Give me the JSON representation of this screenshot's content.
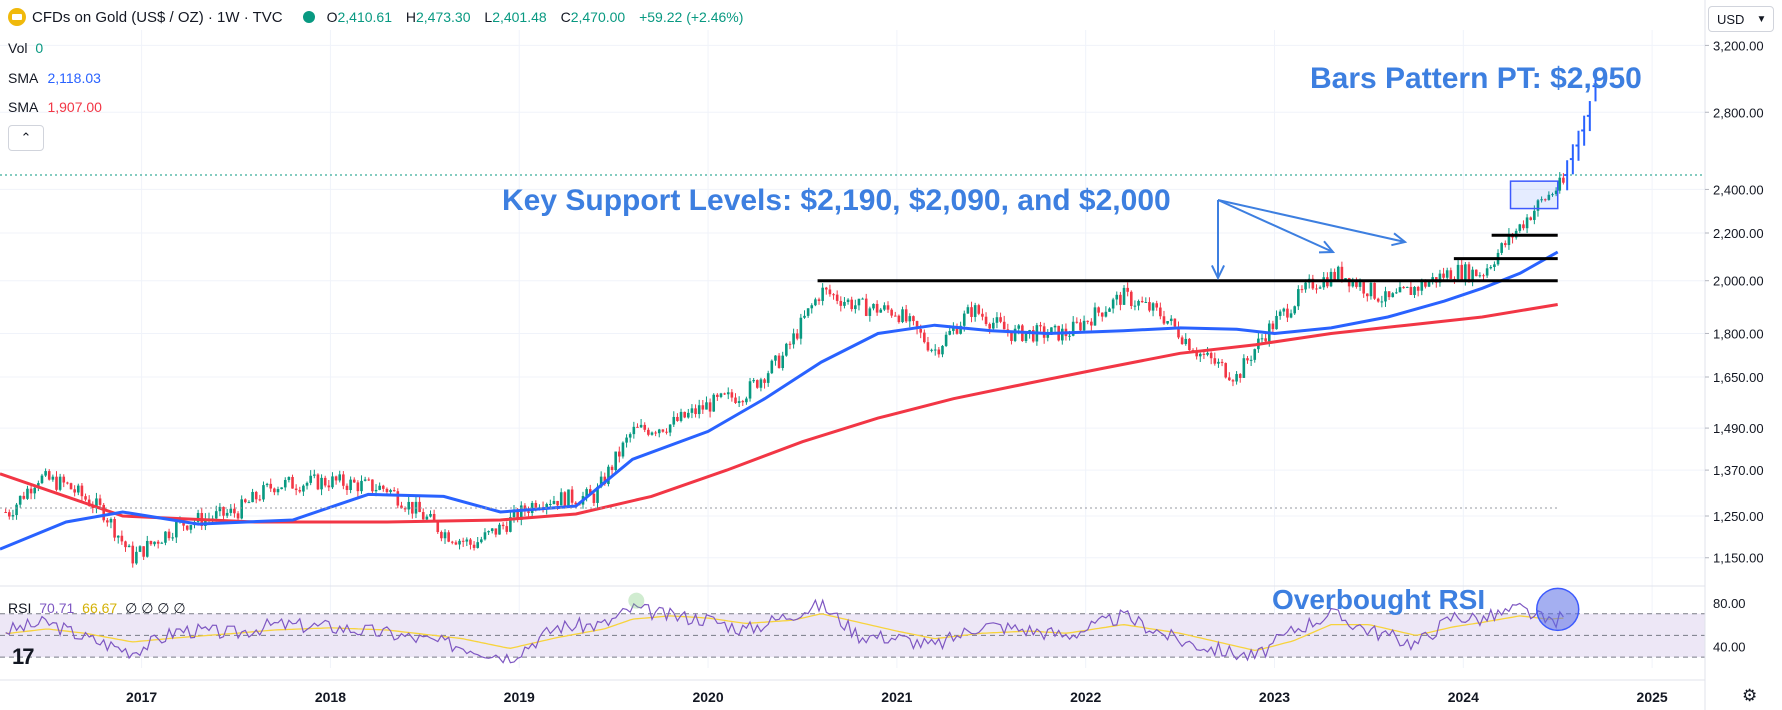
{
  "header": {
    "title": "CFDs on Gold (US$ / OZ) · 1W · TVC",
    "ohlc": {
      "o_label": "O",
      "o": "2,410.61",
      "h_label": "H",
      "h": "2,473.30",
      "l_label": "L",
      "l": "2,401.48",
      "c_label": "C",
      "c": "2,470.00",
      "change": "+59.22 (+2.46%)"
    }
  },
  "indicators": {
    "vol_label": "Vol",
    "vol_value": "0",
    "sma1_label": "SMA",
    "sma1_value": "2,118.03",
    "sma2_label": "SMA",
    "sma2_value": "1,907.00",
    "rsi_label": "RSI",
    "rsi_value": "70.71",
    "rsi_ma_value": "66.67",
    "rsi_extra": "∅ ∅ ∅ ∅"
  },
  "currency": {
    "label": "USD",
    "icon": "chevron-down-icon"
  },
  "collapse_icon": "chevron-up-icon",
  "annotations": {
    "target": "Bars Pattern PT: $2,950",
    "support": "Key Support Levels: $2,190, $2,090, and $2,000",
    "rsi": "Overbought RSI"
  },
  "colors": {
    "up": "#089981",
    "down": "#f23645",
    "sma_fast": "#2962ff",
    "sma_slow": "#f23645",
    "annotation": "#3d7fe0",
    "rsi": "#7e57c2",
    "rsi_ma": "#f7d33c",
    "rsi_band": "#ede7f6"
  },
  "chart_data": {
    "type": "line",
    "price_scale": "log",
    "ylim": [
      1100,
      3300
    ],
    "y_ticks": [
      "3,200.00",
      "2,800.00",
      "2,400.00",
      "2,200.00",
      "2,000.00",
      "1,800.00",
      "1,650.00",
      "1,490.00",
      "1,370.00",
      "1,250.00",
      "1,150.00"
    ],
    "y_tick_values": [
      3200,
      2800,
      2400,
      2200,
      2000,
      1800,
      1650,
      1490,
      1370,
      1250,
      1150
    ],
    "x_ticks": [
      "2017",
      "2018",
      "2019",
      "2020",
      "2021",
      "2022",
      "2023",
      "2024",
      "2025"
    ],
    "x_tick_years": [
      2017,
      2018,
      2019,
      2020,
      2021,
      2022,
      2023,
      2024,
      2025
    ],
    "xlim": [
      2016.25,
      2025.28
    ],
    "series": [
      {
        "name": "Close",
        "values_t": [
          2016.3,
          2016.45,
          2016.6,
          2016.8,
          2016.95,
          2017.2,
          2017.5,
          2017.7,
          2018.0,
          2018.3,
          2018.6,
          2018.75,
          2018.9,
          2019.1,
          2019.4,
          2019.6,
          2019.8,
          2020.0,
          2020.2,
          2020.4,
          2020.6,
          2020.8,
          2021.0,
          2021.2,
          2021.4,
          2021.6,
          2021.9,
          2022.2,
          2022.4,
          2022.6,
          2022.8,
          2022.95,
          2023.2,
          2023.35,
          2023.6,
          2023.8,
          2023.95,
          2024.1,
          2024.25,
          2024.4,
          2024.5,
          2024.62
        ],
        "values": [
          1260,
          1350,
          1330,
          1260,
          1150,
          1230,
          1260,
          1330,
          1340,
          1320,
          1210,
          1180,
          1220,
          1290,
          1300,
          1480,
          1500,
          1560,
          1600,
          1720,
          1960,
          1900,
          1880,
          1740,
          1890,
          1800,
          1800,
          1940,
          1870,
          1730,
          1650,
          1800,
          1990,
          2030,
          1920,
          1990,
          2040,
          2030,
          2180,
          2330,
          2410,
          2470
        ]
      },
      {
        "name": "SMA",
        "values_t": [
          2016.25,
          2016.6,
          2016.9,
          2017.3,
          2017.8,
          2018.2,
          2018.6,
          2018.9,
          2019.3,
          2019.6,
          2020.0,
          2020.3,
          2020.6,
          2020.9,
          2021.2,
          2021.5,
          2021.8,
          2022.2,
          2022.5,
          2022.8,
          2023.0,
          2023.3,
          2023.6,
          2023.9,
          2024.1,
          2024.3,
          2024.5
        ],
        "values": [
          1170,
          1235,
          1260,
          1230,
          1240,
          1305,
          1300,
          1260,
          1275,
          1400,
          1480,
          1580,
          1700,
          1800,
          1830,
          1810,
          1800,
          1810,
          1820,
          1815,
          1800,
          1820,
          1860,
          1920,
          1970,
          2030,
          2118
        ]
      },
      {
        "name": "SMA",
        "values_t": [
          2016.25,
          2016.9,
          2017.6,
          2018.3,
          2018.9,
          2019.3,
          2019.7,
          2020.1,
          2020.5,
          2020.9,
          2021.3,
          2021.7,
          2022.1,
          2022.5,
          2022.9,
          2023.3,
          2023.7,
          2024.1,
          2024.5
        ],
        "values": [
          1360,
          1250,
          1235,
          1235,
          1240,
          1255,
          1300,
          1370,
          1450,
          1520,
          1580,
          1630,
          1680,
          1730,
          1760,
          1800,
          1830,
          1860,
          1907
        ]
      },
      {
        "name": "Bars Pattern",
        "values_t": [
          2024.55,
          2024.58,
          2024.61,
          2024.64,
          2024.67,
          2024.7
        ],
        "values": [
          2470,
          2550,
          2620,
          2700,
          2780,
          2950
        ]
      }
    ],
    "support_levels": [
      {
        "value": 2190,
        "from": 2024.15,
        "to": 2024.5
      },
      {
        "value": 2090,
        "from": 2023.95,
        "to": 2024.5
      },
      {
        "value": 2000,
        "from": 2020.58,
        "to": 2024.5
      }
    ],
    "consolidation_box": {
      "from": 2024.25,
      "to": 2024.5,
      "low": 2310,
      "high": 2440
    },
    "rsi": {
      "ylim": [
        20,
        90
      ],
      "ticks": [
        "80.00",
        "40.00"
      ],
      "tick_values": [
        80,
        40
      ],
      "overbought": 70,
      "oversold": 30,
      "mid": 50,
      "values_t": [
        2016.3,
        2016.5,
        2016.7,
        2016.95,
        2017.2,
        2017.5,
        2017.7,
        2018.0,
        2018.3,
        2018.7,
        2018.95,
        2019.2,
        2019.45,
        2019.6,
        2019.8,
        2020.0,
        2020.2,
        2020.45,
        2020.6,
        2020.8,
        2021.0,
        2021.2,
        2021.45,
        2021.7,
        2021.9,
        2022.2,
        2022.5,
        2022.75,
        2022.9,
        2023.1,
        2023.3,
        2023.5,
        2023.75,
        2023.95,
        2024.1,
        2024.3,
        2024.45,
        2024.6
      ],
      "values": [
        55,
        62,
        48,
        35,
        55,
        52,
        60,
        58,
        52,
        40,
        30,
        58,
        60,
        75,
        68,
        65,
        55,
        70,
        78,
        50,
        48,
        40,
        60,
        55,
        50,
        68,
        45,
        35,
        30,
        55,
        70,
        55,
        42,
        68,
        65,
        75,
        62,
        71
      ],
      "ma": [
        52,
        56,
        52,
        44,
        48,
        52,
        55,
        57,
        55,
        47,
        38,
        48,
        56,
        65,
        68,
        66,
        61,
        64,
        70,
        62,
        54,
        47,
        52,
        54,
        52,
        60,
        52,
        42,
        36,
        45,
        60,
        60,
        50,
        58,
        62,
        68,
        65,
        66.67
      ]
    }
  }
}
